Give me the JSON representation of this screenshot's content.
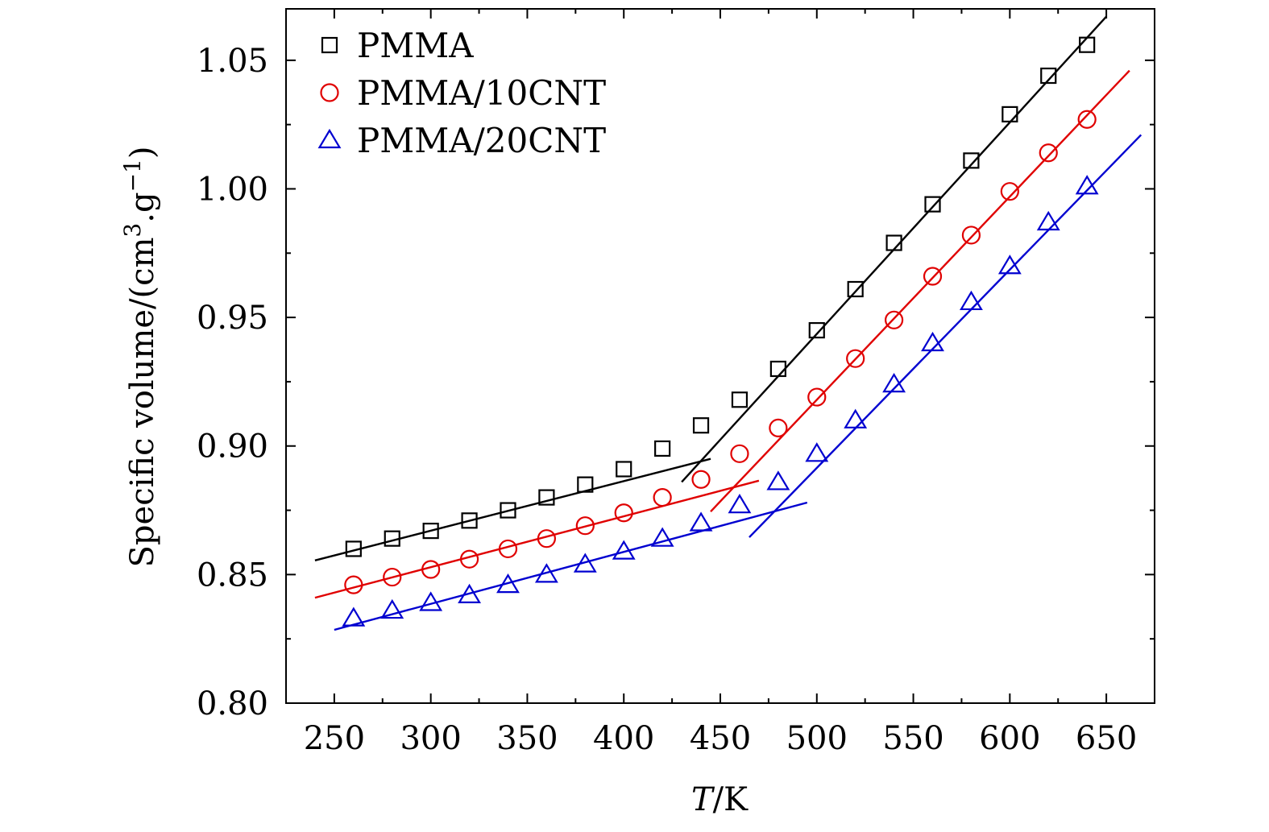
{
  "chart_data": {
    "type": "scatter",
    "title": "",
    "xlabel_italic": "T",
    "xlabel_unit": "/K",
    "ylabel": "Specific volume/(cm",
    "ylabel_sup1": "3",
    "ylabel_mid": ".g",
    "ylabel_sup2": "−1",
    "ylabel_end": ")",
    "xlim": [
      225,
      675
    ],
    "ylim": [
      0.8,
      1.07
    ],
    "xticks": [
      250,
      300,
      350,
      400,
      450,
      500,
      550,
      600,
      650
    ],
    "xtick_labels": [
      "250",
      "300",
      "350",
      "400",
      "450",
      "500",
      "550",
      "600",
      "650"
    ],
    "yticks": [
      0.8,
      0.85,
      0.9,
      0.95,
      1.0,
      1.05
    ],
    "ytick_labels": [
      "0.80",
      "0.85",
      "0.90",
      "0.95",
      "1.00",
      "1.05"
    ],
    "legend_position": "top-left",
    "series": [
      {
        "name": "PMMA",
        "marker": "square",
        "color": "#000000",
        "x": [
          260,
          280,
          300,
          320,
          340,
          360,
          380,
          400,
          420,
          440,
          460,
          480,
          500,
          520,
          540,
          560,
          580,
          600,
          620,
          640
        ],
        "y": [
          0.86,
          0.864,
          0.867,
          0.871,
          0.875,
          0.88,
          0.885,
          0.891,
          0.899,
          0.908,
          0.918,
          0.93,
          0.945,
          0.961,
          0.979,
          0.994,
          1.011,
          1.029,
          1.044,
          1.056
        ],
        "fit_lines": [
          {
            "x": [
              240,
              445
            ],
            "y": [
              0.8555,
              0.895
            ]
          },
          {
            "x": [
              430,
              650
            ],
            "y": [
              0.886,
              1.067
            ]
          }
        ]
      },
      {
        "name": "PMMA/10CNT",
        "marker": "circle",
        "color": "#e00000",
        "x": [
          260,
          280,
          300,
          320,
          340,
          360,
          380,
          400,
          420,
          440,
          460,
          480,
          500,
          520,
          540,
          560,
          580,
          600,
          620,
          640
        ],
        "y": [
          0.846,
          0.849,
          0.852,
          0.856,
          0.86,
          0.864,
          0.869,
          0.874,
          0.88,
          0.887,
          0.897,
          0.907,
          0.919,
          0.934,
          0.949,
          0.966,
          0.982,
          0.999,
          1.014,
          1.027
        ],
        "fit_lines": [
          {
            "x": [
              240,
              470
            ],
            "y": [
              0.841,
              0.8865
            ]
          },
          {
            "x": [
              445,
              662
            ],
            "y": [
              0.8745,
              1.046
            ]
          }
        ]
      },
      {
        "name": "PMMA/20CNT",
        "marker": "triangle",
        "color": "#0000d0",
        "x": [
          260,
          280,
          300,
          320,
          340,
          360,
          380,
          400,
          420,
          440,
          460,
          480,
          500,
          520,
          540,
          560,
          580,
          600,
          620,
          640
        ],
        "y": [
          0.833,
          0.836,
          0.839,
          0.842,
          0.846,
          0.85,
          0.854,
          0.859,
          0.864,
          0.87,
          0.877,
          0.886,
          0.897,
          0.91,
          0.924,
          0.94,
          0.956,
          0.97,
          0.987,
          1.001
        ],
        "fit_lines": [
          {
            "x": [
              250,
              495
            ],
            "y": [
              0.8285,
              0.878
            ]
          },
          {
            "x": [
              465,
              668
            ],
            "y": [
              0.8645,
              1.021
            ]
          }
        ]
      }
    ]
  }
}
